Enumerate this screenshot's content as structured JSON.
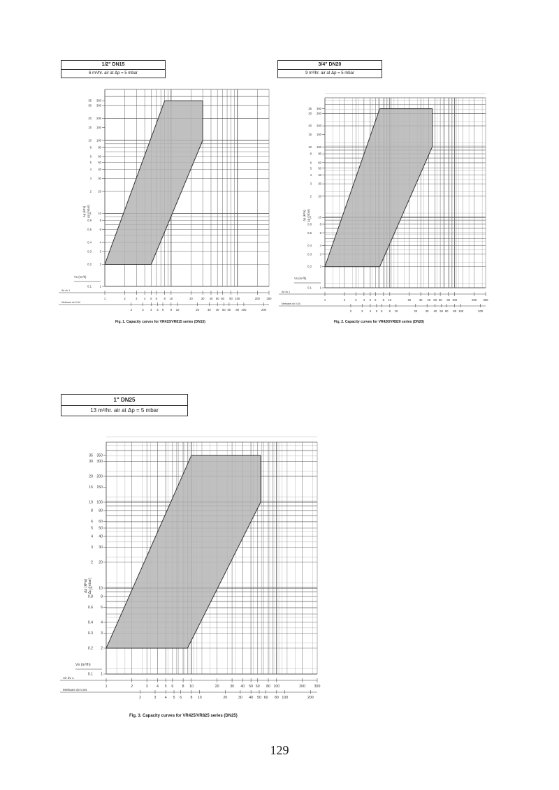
{
  "page_number": "129",
  "figures": [
    {
      "heading": "1/2\" DN15",
      "subheading": "6 m³/hr. air at Δp = 5 mbar",
      "caption": "Fig. 1. Capacity curves for VR415/VR815 series (DN15)",
      "y_label_kpa": "Δp (kPa)",
      "y_label_mbar": "Δp (mbar)",
      "x_label": "Vn (m³/h)",
      "air_row_label": "Air dv 1",
      "methane_row_label": "Methane dv 0.64"
    },
    {
      "heading": "3/4\" DN20",
      "subheading": "9 m³/hr. air at Δp = 5 mbar",
      "caption": "Fig. 2. Capacity curves for VR420/VR820 series (DN20)",
      "y_label_kpa": "Δp (kPa)",
      "y_label_mbar": "Δp (mbar)",
      "x_label": "Vn (m³/h)",
      "air_row_label": "Air dv 1",
      "methane_row_label": "Methane dv 0.64"
    },
    {
      "heading": "1\" DN25",
      "subheading": "13 m³/hr. air at Δp = 5 mbar",
      "caption": "Fig. 3. Capacity curves for VR425/VR825 series (DN25)",
      "y_label_kpa": "Δp (kPa)",
      "y_label_mbar": "Δp (mbar)",
      "x_label": "Vn (m³/h)",
      "air_row_label": "Air dv 1",
      "methane_row_label": "Methane dv 0.64"
    }
  ],
  "chart_data": [
    {
      "type": "area",
      "x_scale": "log",
      "y_scale": "log",
      "xlim": [
        1,
        300
      ],
      "ylim": [
        0.1,
        50
      ],
      "y_ticks_kpa": [
        "0.1",
        "0.2",
        "0.3",
        "0.4",
        "0.6",
        "0.8",
        "1",
        "2",
        "3",
        "4",
        "5",
        "6",
        "8",
        "10",
        "15",
        "20",
        "30",
        "35"
      ],
      "y_ticks_mbar": [
        "1",
        "2",
        "3",
        "4",
        "6",
        "8",
        "10",
        "20",
        "30",
        "40",
        "50",
        "60",
        "80",
        "100",
        "150",
        "200",
        "300",
        "350"
      ],
      "x_ticks_air": [
        "1",
        "2",
        "3",
        "4",
        "5",
        "6",
        "8",
        "10",
        "20",
        "30",
        "40",
        "50",
        "60",
        "80",
        "100",
        "200",
        "300"
      ],
      "x_ticks_methane": [
        "2",
        "3",
        "4",
        "5",
        "6",
        "8",
        "10",
        "20",
        "30",
        "40",
        "50",
        "60",
        "80",
        "100",
        "200",
        "300"
      ],
      "region_kpa": [
        [
          1,
          0.2
        ],
        [
          5,
          0.2
        ],
        [
          30,
          10
        ],
        [
          30,
          35
        ],
        [
          8,
          35
        ]
      ],
      "grid": true
    },
    {
      "type": "area",
      "x_scale": "log",
      "y_scale": "log",
      "xlim": [
        1,
        300
      ],
      "ylim": [
        0.1,
        50
      ],
      "y_ticks_kpa": [
        "0.1",
        "0.2",
        "0.3",
        "0.4",
        "0.6",
        "0.8",
        "1",
        "2",
        "3",
        "4",
        "5",
        "6",
        "8",
        "10",
        "15",
        "20",
        "30",
        "35"
      ],
      "y_ticks_mbar": [
        "1",
        "2",
        "3",
        "4",
        "6",
        "8",
        "10",
        "20",
        "30",
        "40",
        "50",
        "60",
        "80",
        "100",
        "150",
        "200",
        "300",
        "350"
      ],
      "x_ticks_air": [
        "1",
        "2",
        "3",
        "4",
        "5",
        "6",
        "8",
        "10",
        "20",
        "30",
        "40",
        "50",
        "60",
        "80",
        "100",
        "200",
        "300"
      ],
      "x_ticks_methane": [
        "2",
        "3",
        "4",
        "5",
        "6",
        "8",
        "10",
        "20",
        "30",
        "40",
        "50",
        "60",
        "80",
        "100",
        "200",
        "300"
      ],
      "region_kpa": [
        [
          1,
          0.2
        ],
        [
          7,
          0.2
        ],
        [
          45,
          10
        ],
        [
          45,
          35
        ],
        [
          7,
          35
        ]
      ],
      "grid": true
    },
    {
      "type": "area",
      "x_scale": "log",
      "y_scale": "log",
      "xlim": [
        1,
        300
      ],
      "ylim": [
        0.1,
        50
      ],
      "y_ticks_kpa": [
        "0.1",
        "0.2",
        "0.3",
        "0.4",
        "0.6",
        "0.8",
        "1",
        "2",
        "3",
        "4",
        "5",
        "6",
        "8",
        "10",
        "15",
        "20",
        "30",
        "35"
      ],
      "y_ticks_mbar": [
        "1",
        "2",
        "3",
        "4",
        "6",
        "8",
        "10",
        "20",
        "30",
        "40",
        "50",
        "60",
        "80",
        "100",
        "150",
        "200",
        "300",
        "350"
      ],
      "x_ticks_air": [
        "1",
        "2",
        "3",
        "4",
        "5",
        "6",
        "8",
        "10",
        "20",
        "30",
        "40",
        "50",
        "60",
        "80",
        "100",
        "200",
        "300"
      ],
      "x_ticks_methane": [
        "2",
        "3",
        "4",
        "5",
        "6",
        "8",
        "10",
        "20",
        "30",
        "40",
        "50",
        "60",
        "80",
        "100",
        "200",
        "300"
      ],
      "region_kpa": [
        [
          1,
          0.2
        ],
        [
          9,
          0.2
        ],
        [
          65,
          10
        ],
        [
          65,
          35
        ],
        [
          10,
          35
        ]
      ],
      "grid": true
    }
  ]
}
